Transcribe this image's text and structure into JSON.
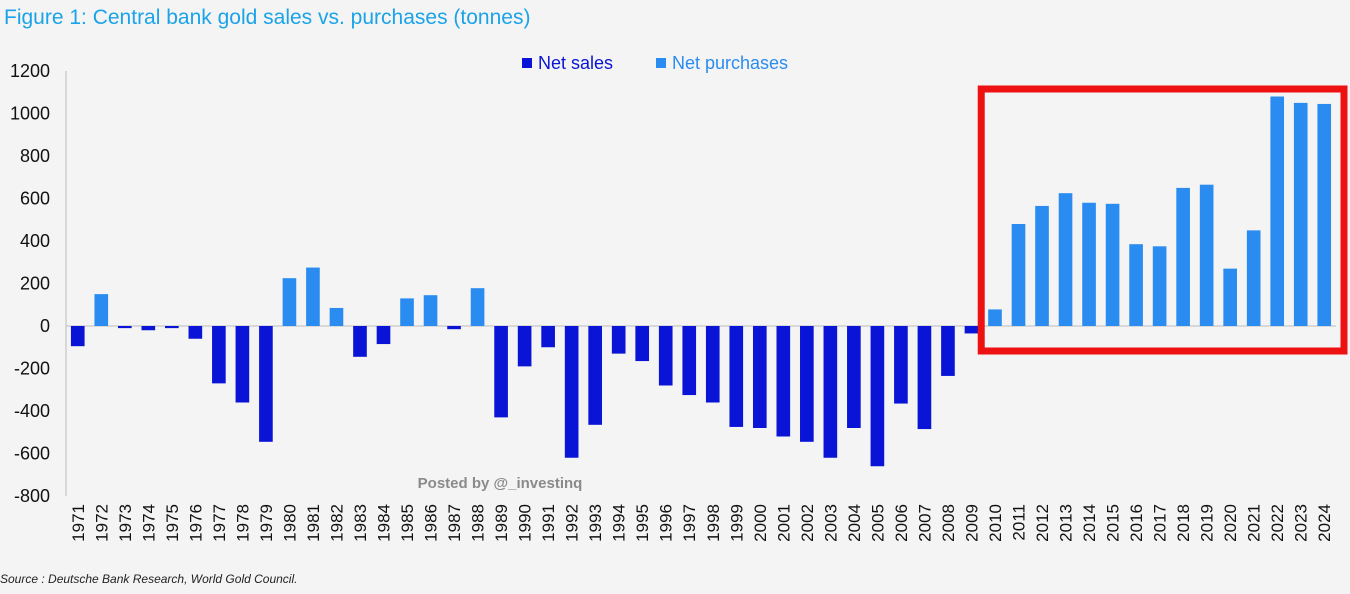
{
  "chart_data": {
    "type": "bar",
    "title": "Figure 1: Central bank gold sales vs. purchases (tonnes)",
    "xlabel": "",
    "ylabel": "",
    "ylim": [
      -800,
      1200
    ],
    "yticks": [
      1200,
      1000,
      800,
      600,
      400,
      200,
      0,
      -200,
      -400,
      -600,
      -800
    ],
    "legend_position": "top-center",
    "legend": [
      {
        "name": "Net sales",
        "color": "#0a14d6"
      },
      {
        "name": "Net purchases",
        "color": "#2a8cf0"
      }
    ],
    "categories": [
      "1971",
      "1972",
      "1973",
      "1974",
      "1975",
      "1976",
      "1977",
      "1978",
      "1979",
      "1980",
      "1981",
      "1982",
      "1983",
      "1984",
      "1985",
      "1986",
      "1987",
      "1988",
      "1989",
      "1990",
      "1991",
      "1992",
      "1993",
      "1994",
      "1995",
      "1996",
      "1997",
      "1998",
      "1999",
      "2000",
      "2001",
      "2002",
      "2003",
      "2004",
      "2005",
      "2006",
      "2007",
      "2008",
      "2009",
      "2010",
      "2011",
      "2012",
      "2013",
      "2014",
      "2015",
      "2016",
      "2017",
      "2018",
      "2019",
      "2020",
      "2021",
      "2022",
      "2023",
      "2024"
    ],
    "values": [
      -95,
      150,
      -10,
      -20,
      -10,
      -60,
      -270,
      -360,
      -545,
      225,
      275,
      85,
      -145,
      -85,
      130,
      145,
      -15,
      178,
      -430,
      -190,
      -100,
      -620,
      -465,
      -130,
      -165,
      -280,
      -325,
      -360,
      -475,
      -480,
      -520,
      -545,
      -620,
      -480,
      -660,
      -365,
      -485,
      -235,
      -35,
      78,
      480,
      565,
      625,
      580,
      575,
      385,
      375,
      650,
      665,
      270,
      450,
      1080,
      1050,
      1045
    ],
    "highlight": {
      "from": "2010",
      "to": "2024",
      "color": "#ee1111"
    },
    "watermark": "Posted by @_investinq",
    "source": "Source : Deutsche Bank Research, World Gold Council."
  }
}
